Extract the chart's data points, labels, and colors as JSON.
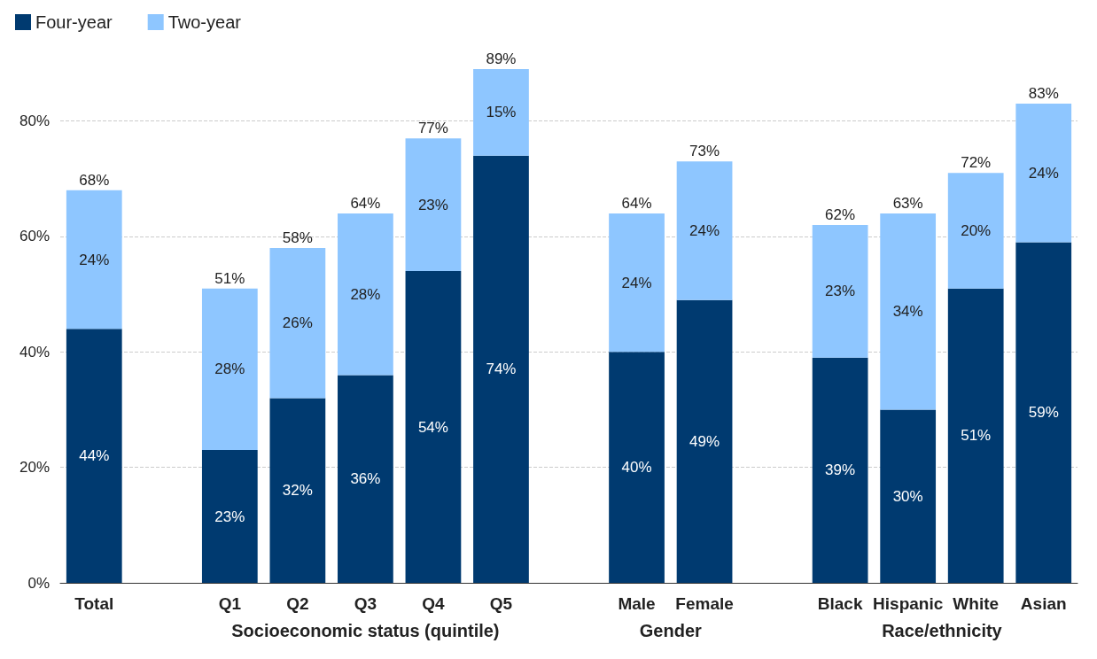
{
  "chart_data": {
    "type": "bar",
    "stacked": true,
    "categories": [
      "Total",
      null,
      "Q1",
      "Q2",
      "Q3",
      "Q4",
      "Q5",
      null,
      "Male",
      "Female",
      null,
      "Black",
      "Hispanic",
      "White",
      "Asian"
    ],
    "series": [
      {
        "name": "Four-year",
        "color": "#003a70",
        "values": [
          44,
          null,
          23,
          32,
          36,
          54,
          74,
          null,
          40,
          49,
          null,
          39,
          30,
          51,
          59
        ],
        "value_labels": [
          "44%",
          null,
          "23%",
          "32%",
          "36%",
          "54%",
          "74%",
          null,
          "40%",
          "49%",
          null,
          "39%",
          "30%",
          "51%",
          "59%"
        ]
      },
      {
        "name": "Two-year",
        "color": "#8ec6ff",
        "values": [
          24,
          null,
          28,
          26,
          28,
          23,
          15,
          null,
          24,
          24,
          null,
          23,
          34,
          20,
          24
        ],
        "value_labels": [
          "24%",
          null,
          "28%",
          "26%",
          "28%",
          "23%",
          "15%",
          null,
          "24%",
          "24%",
          null,
          "23%",
          "34%",
          "20%",
          "24%"
        ]
      }
    ],
    "totals": [
      "68%",
      null,
      "51%",
      "58%",
      "64%",
      "77%",
      "89%",
      null,
      "64%",
      "73%",
      null,
      "62%",
      "63%",
      "72%",
      "83%"
    ],
    "ylim": [
      0,
      89
    ],
    "yticks": [
      {
        "value": 0,
        "label": "0%"
      },
      {
        "value": 20,
        "label": "20%"
      },
      {
        "value": 40,
        "label": "40%"
      },
      {
        "value": 60,
        "label": "60%"
      },
      {
        "value": 80,
        "label": "80%"
      }
    ],
    "grid": "y",
    "legend": "top left",
    "annotations": [
      "Socioeconomic status (quintile)",
      "Gender",
      "Race/ethnicity"
    ]
  }
}
